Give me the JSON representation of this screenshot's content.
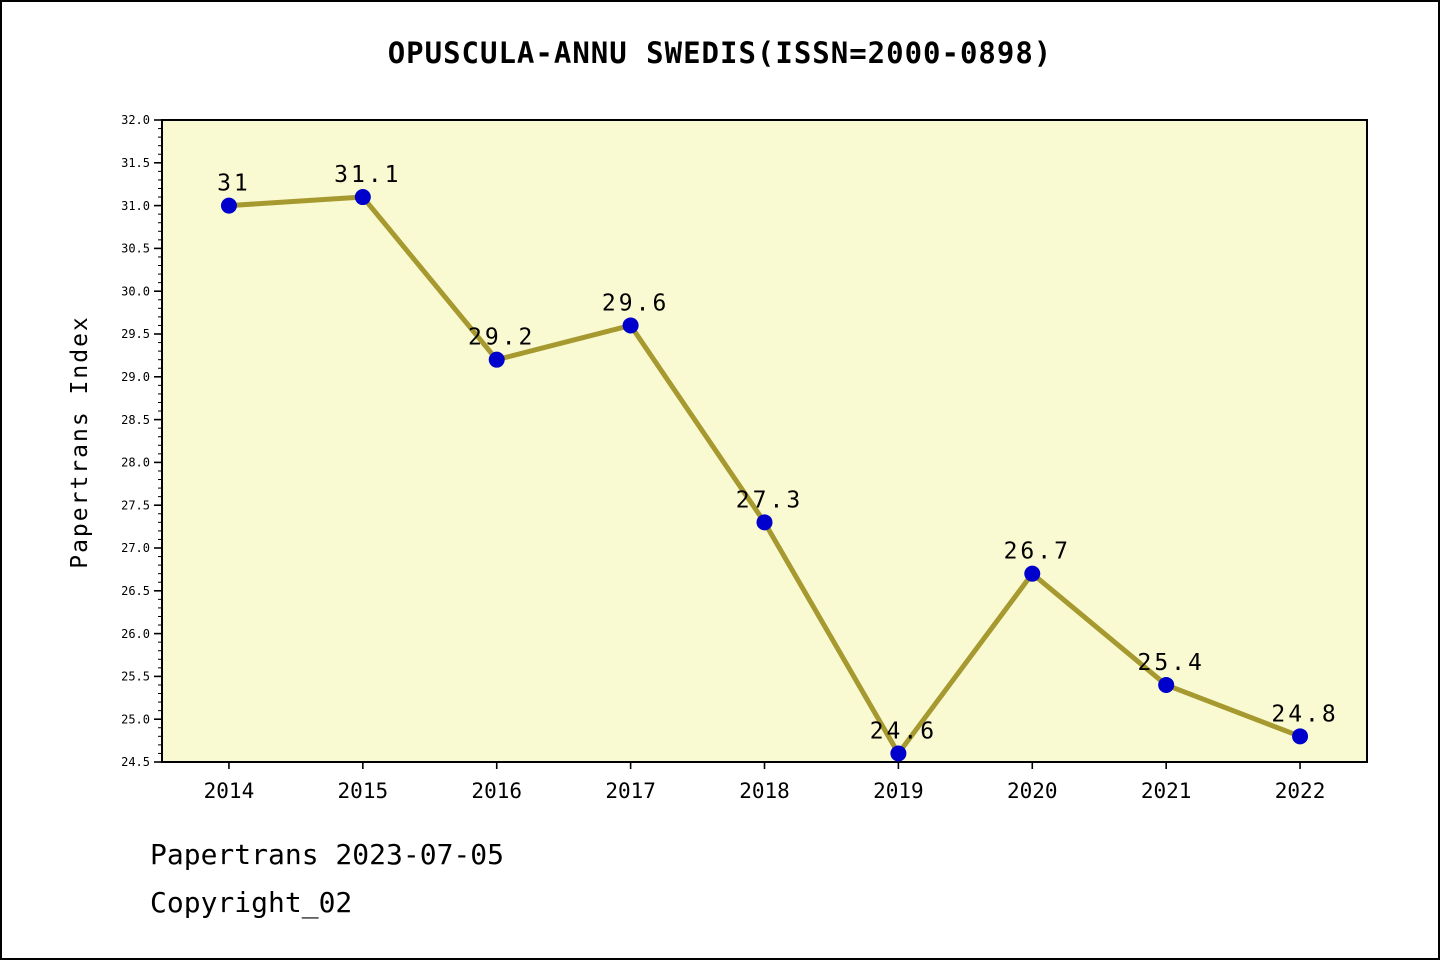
{
  "chart_data": {
    "type": "line",
    "title": "OPUSCULA-ANNU SWEDIS(ISSN=2000-0898)",
    "xlabel": "",
    "ylabel": "Papertrans Index",
    "categories": [
      "2014",
      "2015",
      "2016",
      "2017",
      "2018",
      "2019",
      "2020",
      "2021",
      "2022"
    ],
    "series": [
      {
        "name": "Papertrans Index",
        "values": [
          31,
          31.1,
          29.2,
          29.6,
          27.3,
          24.6,
          26.7,
          25.4,
          24.8
        ]
      }
    ],
    "point_labels": [
      "31",
      "31.1",
      "29.2",
      "29.6",
      "27.3",
      "24.6",
      "26.7",
      "25.4",
      "24.8"
    ],
    "ylim": [
      24.5,
      32.0
    ],
    "ytick_step": 0.5,
    "yminor_step": 0.1,
    "grid": false,
    "legend_position": "none",
    "colors": {
      "plot_bg": "#FAFAD2",
      "line": "#A6992F",
      "marker": "#0000CD",
      "axis": "#000000",
      "page_bg": "#FFFFFF"
    }
  },
  "footer": {
    "line1": "Papertrans 2023-07-05",
    "line2": "Copyright_02"
  }
}
